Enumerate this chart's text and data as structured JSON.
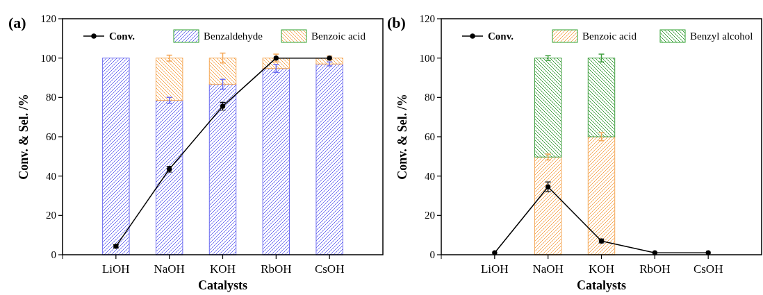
{
  "chart_data": [
    {
      "type": "bar",
      "title": "(a)",
      "xlabel": "Catalysts",
      "ylabel": "Conv. & Sel. /%",
      "categories": [
        "LiOH",
        "NaOH",
        "KOH",
        "RbOH",
        "CsOH"
      ],
      "stacked": true,
      "ylim": [
        0,
        120
      ],
      "yticks": [
        0,
        20,
        40,
        60,
        80,
        100,
        120
      ],
      "legend": "top",
      "marker": "circle",
      "grid": false,
      "series": [
        {
          "name": "Conv.",
          "type": "line",
          "color": "#000000",
          "values": [
            4.3,
            43.5,
            75.5,
            100,
            100
          ],
          "errors": [
            0.8,
            1.5,
            2,
            null,
            null
          ]
        },
        {
          "name": "Benzaldehyde",
          "color": "#6b6bf0",
          "values": [
            100,
            78.5,
            86.7,
            94.7,
            97
          ],
          "errors": [
            null,
            1.5,
            2.5,
            2,
            1
          ]
        },
        {
          "name": "Benzoic acid",
          "color": "#f5a857",
          "values": [
            null,
            21.5,
            13.3,
            5.3,
            3
          ],
          "errors": [
            null,
            1.5,
            2.5,
            2,
            1
          ]
        }
      ]
    },
    {
      "type": "bar",
      "title": "(b)",
      "xlabel": "Catalysts",
      "ylabel": "Conv. & Sel. /%",
      "categories": [
        "LiOH",
        "NaOH",
        "KOH",
        "RbOH",
        "CsOH"
      ],
      "stacked": true,
      "ylim": [
        0,
        120
      ],
      "yticks": [
        0,
        20,
        40,
        60,
        80,
        100,
        120
      ],
      "legend": "top",
      "marker": "circle",
      "grid": false,
      "series": [
        {
          "name": "Conv.",
          "type": "line",
          "color": "#000000",
          "values": [
            1,
            34.5,
            7,
            1,
            1
          ],
          "errors": [
            null,
            2.5,
            1,
            null,
            null
          ]
        },
        {
          "name": "Benzoic acid",
          "color": "#f5a857",
          "values": [
            null,
            49.7,
            60,
            null,
            null
          ],
          "errors": [
            null,
            1.5,
            2,
            null,
            null
          ]
        },
        {
          "name": "Benzyl alcohol",
          "color": "#3f9f3f",
          "values": [
            null,
            50.3,
            40,
            null,
            null
          ],
          "errors": [
            null,
            1.2,
            2,
            null,
            null
          ]
        }
      ]
    }
  ]
}
